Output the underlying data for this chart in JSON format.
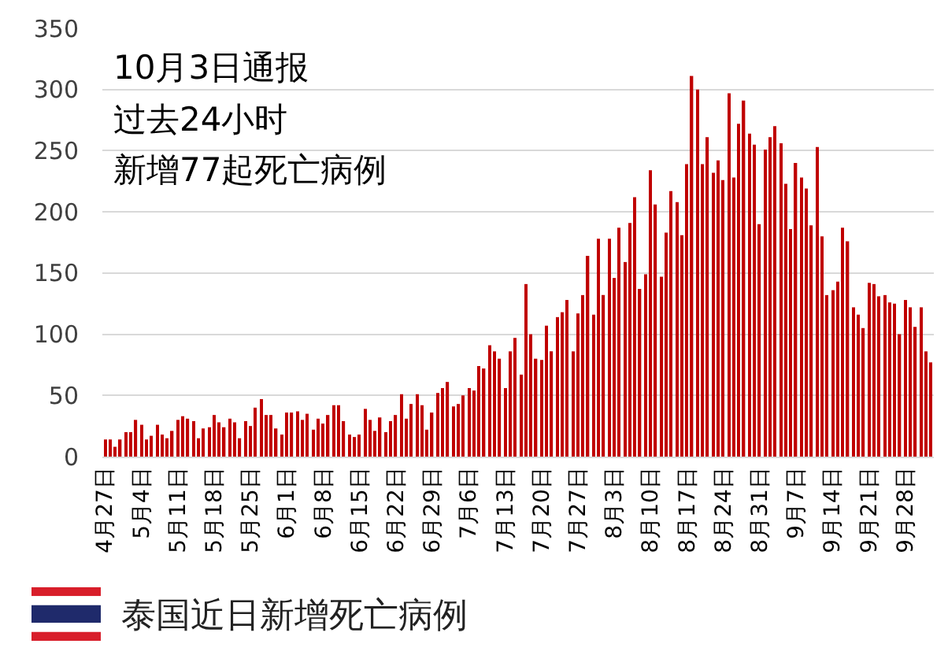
{
  "chart_data": {
    "type": "bar",
    "title": "泰国近日新增死亡病例",
    "annotations": [
      "10月3日通报",
      "过去24小时",
      "新增77起死亡病例"
    ],
    "categories": [
      "4月27日",
      null,
      null,
      null,
      null,
      null,
      null,
      "5月4日",
      null,
      null,
      null,
      null,
      null,
      null,
      "5月11日",
      null,
      null,
      null,
      null,
      null,
      null,
      "5月18日",
      null,
      null,
      null,
      null,
      null,
      null,
      "5月25日",
      null,
      null,
      null,
      null,
      null,
      null,
      "6月1日",
      null,
      null,
      null,
      null,
      null,
      null,
      "6月8日",
      null,
      null,
      null,
      null,
      null,
      null,
      "6月15日",
      null,
      null,
      null,
      null,
      null,
      null,
      "6月22日",
      null,
      null,
      null,
      null,
      null,
      null,
      "6月29日",
      null,
      null,
      null,
      null,
      null,
      null,
      "7月6日",
      null,
      null,
      null,
      null,
      null,
      null,
      "7月13日",
      null,
      null,
      null,
      null,
      null,
      null,
      "7月20日",
      null,
      null,
      null,
      null,
      null,
      null,
      "7月27日",
      null,
      null,
      null,
      null,
      null,
      null,
      "8月3日",
      null,
      null,
      null,
      null,
      null,
      null,
      "8月10日",
      null,
      null,
      null,
      null,
      null,
      null,
      "8月17日",
      null,
      null,
      null,
      null,
      null,
      null,
      "8月24日",
      null,
      null,
      null,
      null,
      null,
      null,
      "8月31日",
      null,
      null,
      null,
      null,
      null,
      null,
      "9月7日",
      null,
      null,
      null,
      null,
      null,
      null,
      "9月14日",
      null,
      null,
      null,
      null,
      null,
      null,
      "9月21日",
      null,
      null,
      null,
      null,
      null,
      null,
      "9月28日",
      null,
      null,
      null,
      null,
      null
    ],
    "values": [
      14,
      14,
      8,
      14,
      20,
      20,
      30,
      26,
      14,
      17,
      26,
      18,
      15,
      21,
      30,
      33,
      31,
      29,
      15,
      23,
      24,
      34,
      28,
      24,
      31,
      28,
      15,
      29,
      25,
      40,
      47,
      34,
      34,
      23,
      18,
      36,
      36,
      37,
      30,
      35,
      22,
      31,
      27,
      34,
      42,
      42,
      29,
      18,
      16,
      18,
      39,
      30,
      21,
      32,
      20,
      29,
      34,
      51,
      31,
      43,
      51,
      42,
      22,
      36,
      52,
      56,
      61,
      41,
      43,
      50,
      56,
      54,
      74,
      72,
      91,
      86,
      80,
      56,
      86,
      97,
      67,
      141,
      100,
      80,
      79,
      107,
      86,
      114,
      118,
      128,
      86,
      117,
      132,
      164,
      116,
      178,
      132,
      178,
      146,
      187,
      159,
      191,
      212,
      137,
      149,
      234,
      206,
      147,
      183,
      217,
      208,
      181,
      239,
      311,
      300,
      239,
      261,
      232,
      242,
      226,
      297,
      228,
      272,
      291,
      264,
      255,
      190,
      251,
      261,
      270,
      256,
      223,
      186,
      240,
      228,
      219,
      189,
      253,
      180,
      132,
      136,
      143,
      187,
      176,
      122,
      116,
      105,
      142,
      141,
      131,
      132,
      126,
      125,
      100,
      128,
      122,
      106,
      122,
      86,
      77
    ],
    "color": "#c00000",
    "ylim": [
      0,
      350
    ],
    "yticks": [
      0,
      50,
      100,
      150,
      200,
      250,
      300,
      350
    ],
    "grid": "y"
  }
}
